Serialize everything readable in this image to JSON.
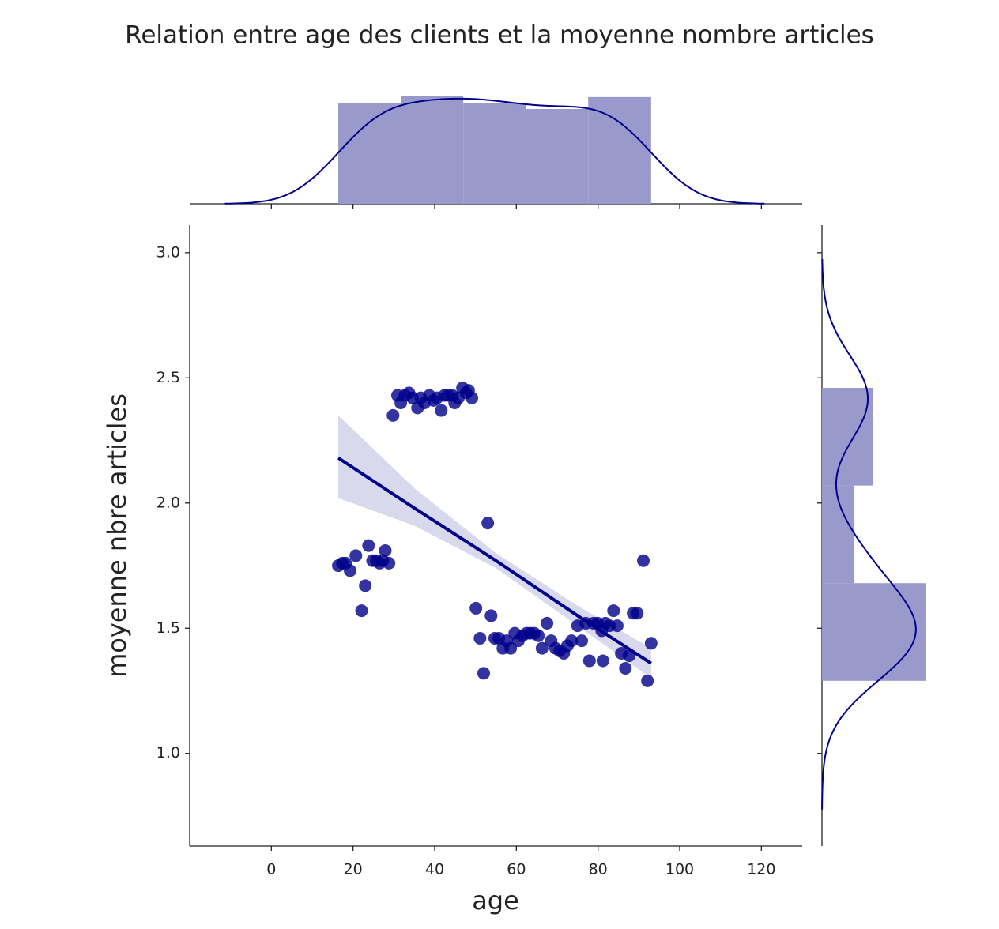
{
  "chart_data": {
    "type": "scatter",
    "title": "Relation entre age des clients et la moyenne nombre articles",
    "x_label": "age",
    "y_label": "moyenne nbre articles",
    "color": "#00008b",
    "hist_color": "#9999cc",
    "xlim": [
      -20,
      130
    ],
    "ylim": [
      0.63,
      3.11
    ],
    "xticks": [
      0,
      20,
      40,
      60,
      80,
      100,
      120
    ],
    "yticks": [
      {
        "value": 1,
        "label": "1.0"
      },
      {
        "value": 1.5,
        "label": "1.5"
      },
      {
        "value": 2,
        "label": "2.0"
      },
      {
        "value": 2.5,
        "label": "2.5"
      },
      {
        "value": 3,
        "label": "3.0"
      }
    ],
    "x": [
      29.8,
      30.9,
      31.7,
      32.7,
      33.7,
      34.6,
      35.8,
      36.6,
      37.5,
      38.7,
      39.7,
      40.6,
      41.6,
      42.4,
      43.3,
      44.3,
      44.9,
      45.8,
      46.8,
      47.7,
      48.3,
      49.1,
      16.4,
      17.4,
      18.2,
      19.3,
      20.7,
      23.0,
      22.1,
      23.8,
      24.8,
      25.7,
      26.5,
      27.3,
      27.9,
      28.8,
      53.0,
      50.1,
      51.1,
      52.0,
      53.8,
      54.7,
      55.7,
      56.7,
      57.6,
      58.6,
      59.6,
      60.5,
      61.5,
      62.5,
      63.4,
      64.4,
      65.4,
      66.3,
      67.5,
      68.5,
      69.6,
      70.6,
      71.6,
      72.5,
      73.5,
      75.0,
      76.0,
      77.0,
      77.9,
      78.9,
      79.9,
      80.9,
      81.2,
      81.8,
      82.8,
      83.8,
      84.7,
      85.7,
      86.7,
      87.6,
      88.6,
      89.6,
      91.1,
      92.1,
      93.0
    ],
    "values": [
      2.35,
      2.43,
      2.4,
      2.43,
      2.44,
      2.42,
      2.38,
      2.42,
      2.4,
      2.43,
      2.41,
      2.42,
      2.37,
      2.43,
      2.43,
      2.43,
      2.4,
      2.42,
      2.46,
      2.44,
      2.45,
      2.42,
      1.75,
      1.76,
      1.76,
      1.73,
      1.79,
      1.67,
      1.57,
      1.83,
      1.77,
      1.77,
      1.76,
      1.77,
      1.81,
      1.76,
      1.92,
      1.58,
      1.46,
      1.32,
      1.55,
      1.46,
      1.46,
      1.42,
      1.45,
      1.42,
      1.48,
      1.45,
      1.47,
      1.48,
      1.48,
      1.48,
      1.47,
      1.42,
      1.52,
      1.45,
      1.42,
      1.41,
      1.4,
      1.43,
      1.45,
      1.51,
      1.45,
      1.52,
      1.37,
      1.52,
      1.52,
      1.49,
      1.37,
      1.52,
      1.51,
      1.57,
      1.51,
      1.4,
      1.34,
      1.39,
      1.56,
      1.56,
      1.77,
      1.29,
      1.44
    ],
    "regression": {
      "x": [
        16.4,
        35,
        55,
        75,
        93
      ],
      "y": [
        2.18,
        1.98,
        1.77,
        1.55,
        1.36
      ],
      "ci_upper": [
        2.35,
        2.06,
        1.8,
        1.59,
        1.42
      ],
      "ci_lower": [
        2.02,
        1.91,
        1.74,
        1.51,
        1.3
      ]
    },
    "x_hist": {
      "bins": [
        16.4,
        31.7,
        47.0,
        62.3,
        77.6,
        93.0
      ],
      "counts": [
        16,
        17,
        16,
        15,
        17
      ]
    },
    "y_hist": {
      "bins": [
        1.29,
        1.68,
        2.07,
        2.46
      ],
      "counts": [
        45,
        14,
        22
      ]
    }
  }
}
